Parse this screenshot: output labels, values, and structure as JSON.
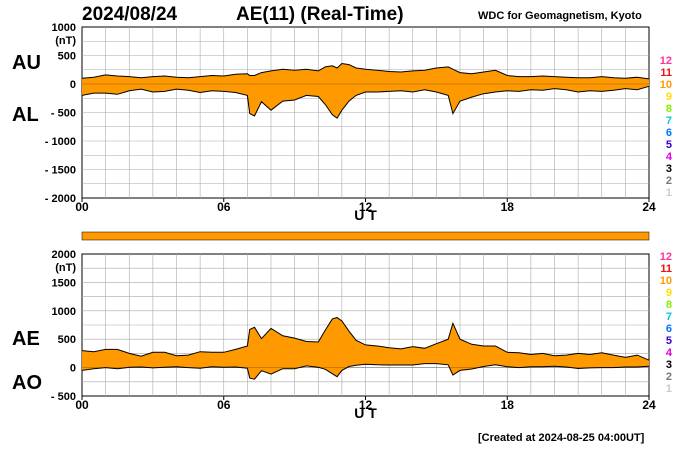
{
  "header": {
    "date": "2024/08/24",
    "title": "AE(11) (Real-Time)",
    "source": "WDC for Geomagnetism, Kyoto"
  },
  "footer": {
    "created": "[Created at 2024-08-25 04:00UT]"
  },
  "labels": {
    "au": "AU",
    "al": "AL",
    "ae": "AE",
    "ao": "AO"
  },
  "legend": {
    "items": [
      {
        "text": "12",
        "color": "#ff3399"
      },
      {
        "text": "11",
        "color": "#ee1111"
      },
      {
        "text": "10",
        "color": "#ff9900"
      },
      {
        "text": "9",
        "color": "#ffdd00"
      },
      {
        "text": "8",
        "color": "#88ee00"
      },
      {
        "text": "7",
        "color": "#00cccc"
      },
      {
        "text": "6",
        "color": "#0077ff"
      },
      {
        "text": "5",
        "color": "#3300cc"
      },
      {
        "text": "4",
        "color": "#dd00dd"
      },
      {
        "text": "3",
        "color": "#000000"
      },
      {
        "text": "2",
        "color": "#777777"
      },
      {
        "text": "1",
        "color": "#cccccc"
      }
    ]
  },
  "colors": {
    "fill": "#ff9900",
    "line": "#000000",
    "grid": "#aaaaaa",
    "background": "#ffffff"
  },
  "chart_data": [
    {
      "type": "area",
      "name": "AU-AL",
      "unit": "(nT)",
      "xlabel": "U T",
      "xlim": [
        0,
        24
      ],
      "xticks": [
        "00",
        "06",
        "12",
        "18",
        "24"
      ],
      "ylim": [
        -2000,
        1000
      ],
      "yticks": [
        "1000",
        "500",
        "0",
        "- 500",
        "- 1000",
        "- 1500",
        "- 2000"
      ],
      "grid": true,
      "x": [
        0,
        0.5,
        1,
        1.5,
        2,
        2.5,
        3,
        3.5,
        4,
        4.5,
        5,
        5.5,
        6,
        6.5,
        7,
        7.1,
        7.3,
        7.6,
        8,
        8.5,
        9,
        9.5,
        10,
        10.3,
        10.6,
        10.8,
        11,
        11.3,
        11.6,
        12,
        12.5,
        13,
        13.5,
        14,
        14.5,
        15,
        15.5,
        15.7,
        16,
        16.5,
        17,
        17.5,
        18,
        18.5,
        19,
        19.5,
        20,
        20.5,
        21,
        21.5,
        22,
        22.5,
        23,
        23.5,
        24
      ],
      "series": [
        {
          "name": "AU",
          "values": [
            100,
            120,
            160,
            140,
            130,
            110,
            130,
            140,
            120,
            110,
            130,
            150,
            140,
            170,
            180,
            150,
            150,
            200,
            230,
            260,
            240,
            260,
            230,
            300,
            320,
            280,
            360,
            340,
            280,
            260,
            240,
            220,
            210,
            230,
            240,
            280,
            300,
            260,
            200,
            180,
            210,
            240,
            150,
            130,
            130,
            140,
            130,
            120,
            110,
            110,
            130,
            110,
            100,
            120,
            90
          ]
        },
        {
          "name": "AL",
          "values": [
            -200,
            -160,
            -160,
            -180,
            -120,
            -90,
            -140,
            -130,
            -90,
            -110,
            -150,
            -120,
            -130,
            -150,
            -200,
            -520,
            -560,
            -310,
            -460,
            -300,
            -280,
            -200,
            -220,
            -360,
            -540,
            -600,
            -460,
            -300,
            -200,
            -140,
            -140,
            -130,
            -120,
            -140,
            -100,
            -140,
            -200,
            -520,
            -300,
            -230,
            -170,
            -140,
            -120,
            -130,
            -100,
            -110,
            -80,
            -100,
            -140,
            -120,
            -130,
            -110,
            -80,
            -100,
            -40
          ]
        }
      ]
    },
    {
      "type": "area",
      "name": "AE-AO",
      "unit": "(nT)",
      "xlabel": "U T",
      "xlim": [
        0,
        24
      ],
      "xticks": [
        "00",
        "06",
        "12",
        "18",
        "24"
      ],
      "ylim": [
        -500,
        2000
      ],
      "yticks": [
        "2000",
        "1500",
        "1000",
        "500",
        "0",
        "- 500"
      ],
      "grid": true,
      "x": [
        0,
        0.5,
        1,
        1.5,
        2,
        2.5,
        3,
        3.5,
        4,
        4.5,
        5,
        5.5,
        6,
        6.5,
        7,
        7.1,
        7.3,
        7.6,
        8,
        8.5,
        9,
        9.5,
        10,
        10.3,
        10.6,
        10.8,
        11,
        11.3,
        11.6,
        12,
        12.5,
        13,
        13.5,
        14,
        14.5,
        15,
        15.5,
        15.7,
        16,
        16.5,
        17,
        17.5,
        18,
        18.5,
        19,
        19.5,
        20,
        20.5,
        21,
        21.5,
        22,
        22.5,
        23,
        23.5,
        24
      ],
      "series": [
        {
          "name": "AE",
          "values": [
            300,
            280,
            320,
            320,
            250,
            200,
            270,
            270,
            210,
            220,
            280,
            270,
            270,
            320,
            380,
            670,
            710,
            510,
            690,
            560,
            520,
            460,
            450,
            660,
            860,
            880,
            820,
            640,
            480,
            400,
            380,
            350,
            330,
            370,
            340,
            420,
            500,
            780,
            500,
            410,
            380,
            380,
            270,
            260,
            230,
            250,
            210,
            220,
            250,
            230,
            260,
            220,
            180,
            220,
            130
          ]
        },
        {
          "name": "AO",
          "values": [
            -50,
            -20,
            0,
            -20,
            5,
            10,
            -5,
            5,
            15,
            0,
            -10,
            15,
            5,
            10,
            -10,
            -185,
            -205,
            -55,
            -115,
            -20,
            -20,
            30,
            5,
            -30,
            -110,
            -160,
            -50,
            20,
            40,
            60,
            50,
            45,
            45,
            45,
            70,
            70,
            50,
            -130,
            -50,
            -25,
            20,
            50,
            15,
            0,
            15,
            15,
            25,
            10,
            -15,
            -5,
            0,
            0,
            10,
            10,
            25
          ]
        }
      ]
    }
  ]
}
